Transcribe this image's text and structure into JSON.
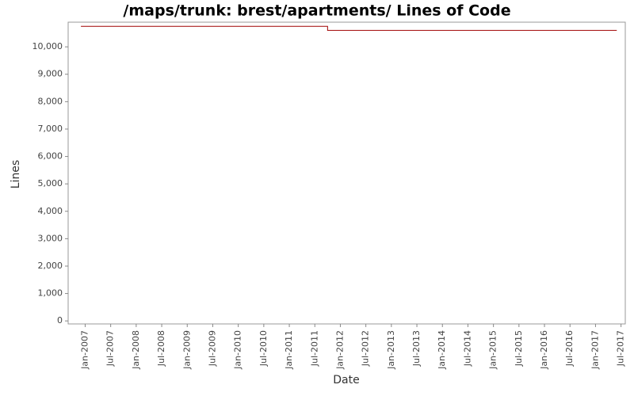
{
  "chart_data": {
    "type": "line",
    "title": "/maps/trunk: brest/apartments/ Lines of Code",
    "x_label": "Date",
    "y_label": "Lines",
    "step": "post",
    "x": [
      "2006-12",
      "2011-10",
      "2017-06"
    ],
    "series": [
      {
        "name": "Lines",
        "color": "#a00000",
        "values": [
          10750,
          10600,
          10600
        ]
      }
    ],
    "xlim": [
      "2006-09",
      "2017-08"
    ],
    "xticks": [
      {
        "value": "2007-01",
        "label": "Jan-2007"
      },
      {
        "value": "2007-07",
        "label": "Jul-2007"
      },
      {
        "value": "2008-01",
        "label": "Jan-2008"
      },
      {
        "value": "2008-07",
        "label": "Jul-2008"
      },
      {
        "value": "2009-01",
        "label": "Jan-2009"
      },
      {
        "value": "2009-07",
        "label": "Jul-2009"
      },
      {
        "value": "2010-01",
        "label": "Jan-2010"
      },
      {
        "value": "2010-07",
        "label": "Jul-2010"
      },
      {
        "value": "2011-01",
        "label": "Jan-2011"
      },
      {
        "value": "2011-07",
        "label": "Jul-2011"
      },
      {
        "value": "2012-01",
        "label": "Jan-2012"
      },
      {
        "value": "2012-07",
        "label": "Jul-2012"
      },
      {
        "value": "2013-01",
        "label": "Jan-2013"
      },
      {
        "value": "2013-07",
        "label": "Jul-2013"
      },
      {
        "value": "2014-01",
        "label": "Jan-2014"
      },
      {
        "value": "2014-07",
        "label": "Jul-2014"
      },
      {
        "value": "2015-01",
        "label": "Jan-2015"
      },
      {
        "value": "2015-07",
        "label": "Jul-2015"
      },
      {
        "value": "2016-01",
        "label": "Jan-2016"
      },
      {
        "value": "2016-07",
        "label": "Jul-2016"
      },
      {
        "value": "2017-01",
        "label": "Jan-2017"
      },
      {
        "value": "2017-07",
        "label": "Jul-2017"
      }
    ],
    "ylim": [
      -110,
      10900
    ],
    "yticks": [
      0,
      {
        "value": 1000,
        "label": "1,000"
      },
      {
        "value": 2000,
        "label": "2,000"
      },
      {
        "value": 3000,
        "label": "3,000"
      },
      {
        "value": 4000,
        "label": "4,000"
      },
      {
        "value": 5000,
        "label": "5,000"
      },
      {
        "value": 6000,
        "label": "6,000"
      },
      {
        "value": 7000,
        "label": "7,000"
      },
      {
        "value": 8000,
        "label": "8,000"
      },
      {
        "value": 9000,
        "label": "9,000"
      },
      {
        "value": 10000,
        "label": "10,000"
      }
    ],
    "grid": false
  }
}
